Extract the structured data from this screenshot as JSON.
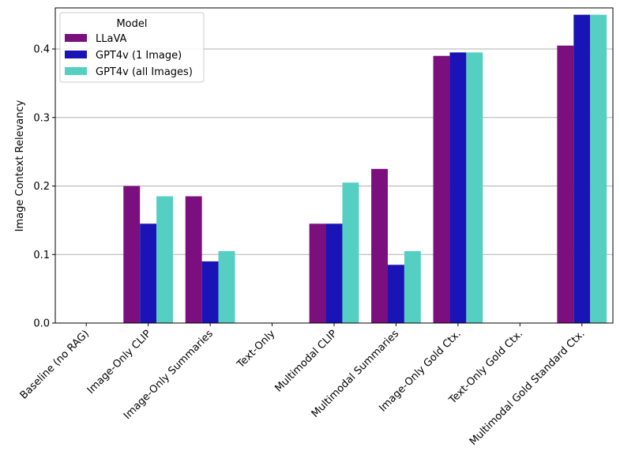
{
  "chart_data": {
    "type": "bar",
    "title": "",
    "xlabel": "",
    "ylabel": "Image Context Relevancy",
    "ylim": [
      0,
      0.46
    ],
    "yticks": [
      0.0,
      0.1,
      0.2,
      0.3,
      0.4
    ],
    "ytick_labels": [
      "0.0",
      "0.1",
      "0.2",
      "0.3",
      "0.4"
    ],
    "grid": "horizontal",
    "legend": {
      "title": "Model",
      "placement": "top-left"
    },
    "categories": [
      "Baseline (no RAG)",
      "Image-Only CLIP",
      "Image-Only Summaries",
      "Text-Only",
      "Multimodal CLIP",
      "Multimodal Summaries",
      "Image-Only Gold Ctx.",
      "Text-Only Gold Ctx.",
      "Multimodal Gold Standard Ctx."
    ],
    "series": [
      {
        "name": "LLaVA",
        "color": "#7b0f7d",
        "values": [
          0,
          0.2,
          0.185,
          0,
          0.145,
          0.225,
          0.39,
          0,
          0.405
        ]
      },
      {
        "name": "GPT4v (1 Image)",
        "color": "#1a14b6",
        "values": [
          0,
          0.145,
          0.09,
          0,
          0.145,
          0.085,
          0.395,
          0,
          0.45
        ]
      },
      {
        "name": "GPT4v (all Images)",
        "color": "#55cfc2",
        "values": [
          0,
          0.185,
          0.105,
          0,
          0.205,
          0.105,
          0.395,
          0,
          0.45
        ]
      }
    ]
  }
}
